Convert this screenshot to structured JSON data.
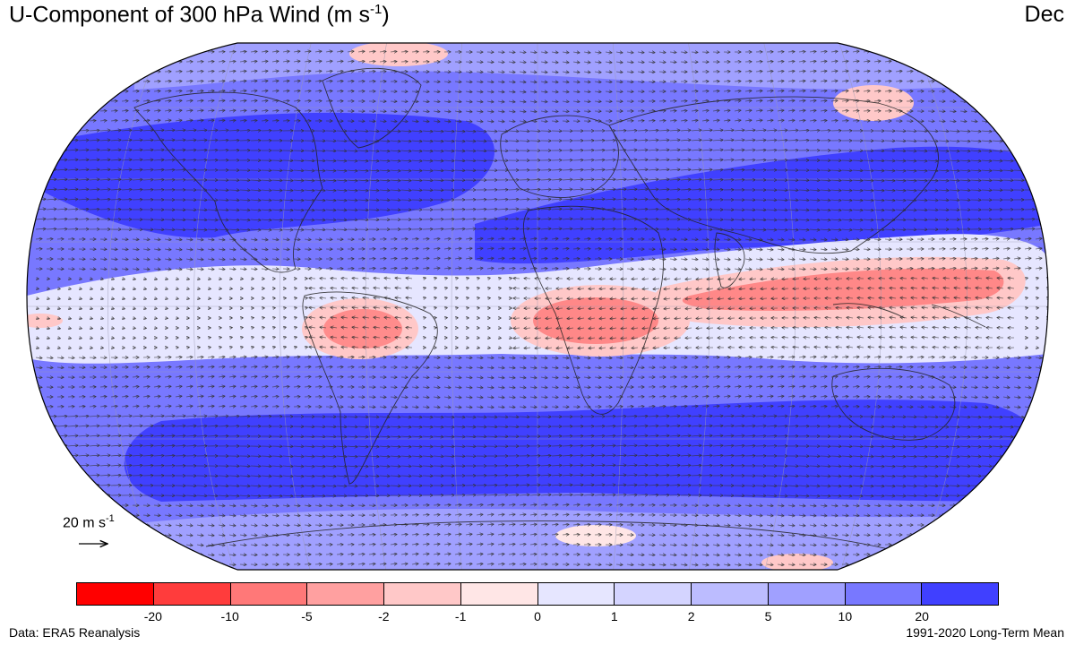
{
  "header": {
    "title_main": "U-Component of 300 hPa Wind (m s",
    "title_sup": "-1",
    "title_close": ")",
    "month": "Dec"
  },
  "reference_vector": {
    "label_main": "20 m s",
    "label_sup": "-1"
  },
  "colorbar": {
    "colors": [
      "#ff0000",
      "#ff3c3c",
      "#ff7878",
      "#ffa0a0",
      "#ffc8c8",
      "#ffe6e6",
      "#e6e6ff",
      "#d4d4ff",
      "#bcbcff",
      "#a0a0ff",
      "#7878ff",
      "#4040ff"
    ],
    "tick_labels": [
      "-20",
      "-10",
      "-5",
      "-2",
      "-1",
      "0",
      "1",
      "2",
      "5",
      "10",
      "20"
    ]
  },
  "footer": {
    "source": "Data: ERA5 Reanalysis",
    "period": "1991-2020 Long-Term Mean"
  }
}
